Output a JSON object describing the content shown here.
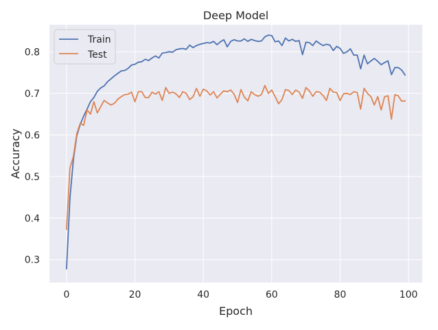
{
  "chart_data": {
    "type": "line",
    "title": "Deep Model",
    "xlabel": "Epoch",
    "ylabel": "Accuracy",
    "xlim": [
      -5,
      104
    ],
    "ylim": [
      0.245,
      0.865
    ],
    "xticks": [
      0,
      20,
      40,
      60,
      80,
      100
    ],
    "yticks": [
      0.3,
      0.4,
      0.5,
      0.6,
      0.7,
      0.8
    ],
    "grid": true,
    "legend_position": "upper-left",
    "background": "#eaeaf2",
    "grid_color": "#ffffff",
    "x": [
      0,
      1,
      2,
      3,
      4,
      5,
      6,
      7,
      8,
      9,
      10,
      11,
      12,
      13,
      14,
      15,
      16,
      17,
      18,
      19,
      20,
      21,
      22,
      23,
      24,
      25,
      26,
      27,
      28,
      29,
      30,
      31,
      32,
      33,
      34,
      35,
      36,
      37,
      38,
      39,
      40,
      41,
      42,
      43,
      44,
      45,
      46,
      47,
      48,
      49,
      50,
      51,
      52,
      53,
      54,
      55,
      56,
      57,
      58,
      59,
      60,
      61,
      62,
      63,
      64,
      65,
      66,
      67,
      68,
      69,
      70,
      71,
      72,
      73,
      74,
      75,
      76,
      77,
      78,
      79,
      80,
      81,
      82,
      83,
      84,
      85,
      86,
      87,
      88,
      89,
      90,
      91,
      92,
      93,
      94,
      95,
      96,
      97,
      98,
      99
    ],
    "series": [
      {
        "name": "Train",
        "color": "#4c72b0",
        "values": [
          0.278,
          0.448,
          0.54,
          0.598,
          0.625,
          0.645,
          0.662,
          0.68,
          0.69,
          0.705,
          0.713,
          0.718,
          0.728,
          0.735,
          0.742,
          0.748,
          0.754,
          0.755,
          0.76,
          0.768,
          0.77,
          0.775,
          0.776,
          0.782,
          0.779,
          0.785,
          0.79,
          0.785,
          0.797,
          0.798,
          0.8,
          0.799,
          0.805,
          0.807,
          0.808,
          0.806,
          0.816,
          0.81,
          0.815,
          0.818,
          0.82,
          0.822,
          0.821,
          0.825,
          0.817,
          0.824,
          0.829,
          0.812,
          0.825,
          0.829,
          0.826,
          0.826,
          0.831,
          0.825,
          0.83,
          0.827,
          0.825,
          0.826,
          0.836,
          0.84,
          0.839,
          0.824,
          0.826,
          0.815,
          0.833,
          0.826,
          0.83,
          0.825,
          0.827,
          0.793,
          0.823,
          0.822,
          0.815,
          0.826,
          0.82,
          0.815,
          0.818,
          0.816,
          0.803,
          0.813,
          0.808,
          0.796,
          0.8,
          0.807,
          0.792,
          0.792,
          0.759,
          0.792,
          0.771,
          0.778,
          0.784,
          0.777,
          0.769,
          0.774,
          0.778,
          0.745,
          0.762,
          0.762,
          0.756,
          0.744
        ]
      },
      {
        "name": "Test",
        "color": "#dd8452",
        "values": [
          0.373,
          0.52,
          0.548,
          0.603,
          0.628,
          0.623,
          0.66,
          0.65,
          0.68,
          0.653,
          0.668,
          0.683,
          0.677,
          0.672,
          0.676,
          0.686,
          0.692,
          0.697,
          0.698,
          0.703,
          0.68,
          0.704,
          0.704,
          0.69,
          0.69,
          0.703,
          0.698,
          0.704,
          0.683,
          0.714,
          0.7,
          0.703,
          0.699,
          0.69,
          0.704,
          0.7,
          0.685,
          0.692,
          0.712,
          0.693,
          0.71,
          0.706,
          0.696,
          0.704,
          0.689,
          0.698,
          0.706,
          0.704,
          0.708,
          0.698,
          0.678,
          0.709,
          0.691,
          0.682,
          0.704,
          0.697,
          0.693,
          0.697,
          0.719,
          0.7,
          0.708,
          0.692,
          0.675,
          0.685,
          0.709,
          0.707,
          0.697,
          0.708,
          0.703,
          0.688,
          0.714,
          0.706,
          0.693,
          0.704,
          0.703,
          0.695,
          0.683,
          0.712,
          0.703,
          0.702,
          0.683,
          0.699,
          0.7,
          0.697,
          0.704,
          0.702,
          0.662,
          0.712,
          0.7,
          0.692,
          0.672,
          0.692,
          0.66,
          0.692,
          0.694,
          0.638,
          0.697,
          0.694,
          0.681,
          0.682
        ]
      }
    ]
  }
}
